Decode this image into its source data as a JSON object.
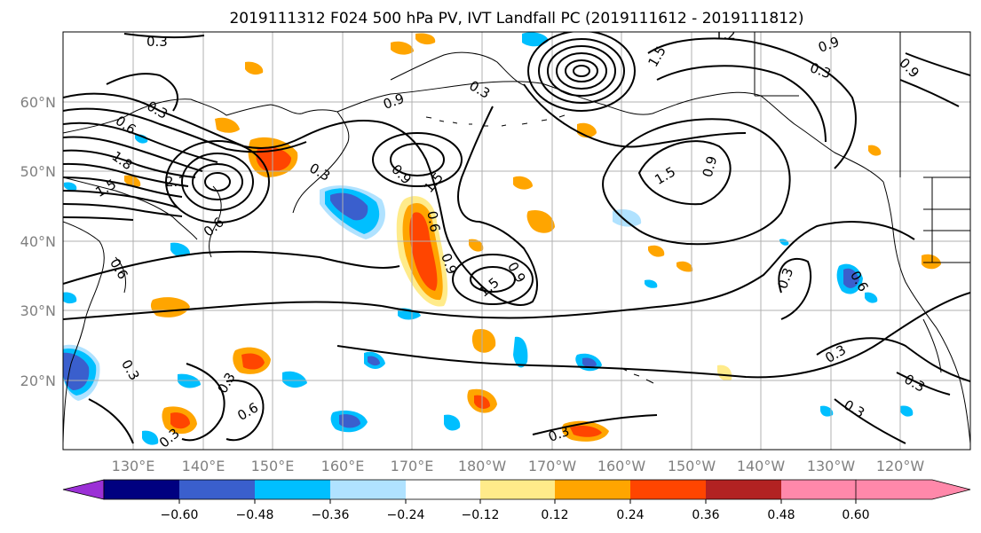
{
  "title": "2019111312 F024 500 hPa PV, IVT Landfall PC (2019111612 - 2019111812)",
  "map": {
    "lat_labels": [
      "60°N",
      "50°N",
      "40°N",
      "30°N",
      "20°N"
    ],
    "lon_labels": [
      "130°E",
      "140°E",
      "150°E",
      "160°E",
      "170°E",
      "180°W",
      "170°W",
      "160°W",
      "150°W",
      "140°W",
      "130°W",
      "120°W"
    ],
    "lat_range": [
      10,
      70
    ],
    "lon_range_east": [
      120,
      250
    ],
    "grid": true,
    "projection": "cylindrical"
  },
  "colorbar": {
    "tick_labels": [
      "−0.60",
      "−0.48",
      "−0.36",
      "−0.24",
      "−0.12",
      "0.12",
      "0.24",
      "0.36",
      "0.48",
      "0.60"
    ],
    "colors": [
      "#9b30d6",
      "#000080",
      "#3a5fcd",
      "#00bfff",
      "#b0e2ff",
      "#ffffff",
      "#ffeb8a",
      "#ffa500",
      "#ff4500",
      "#b22222",
      "#ff88aa"
    ],
    "extend": "both"
  },
  "contour_labels": [
    "0.3",
    "0.6",
    "0.9",
    "1.2",
    "1.5",
    "1.8",
    "2.1"
  ]
}
